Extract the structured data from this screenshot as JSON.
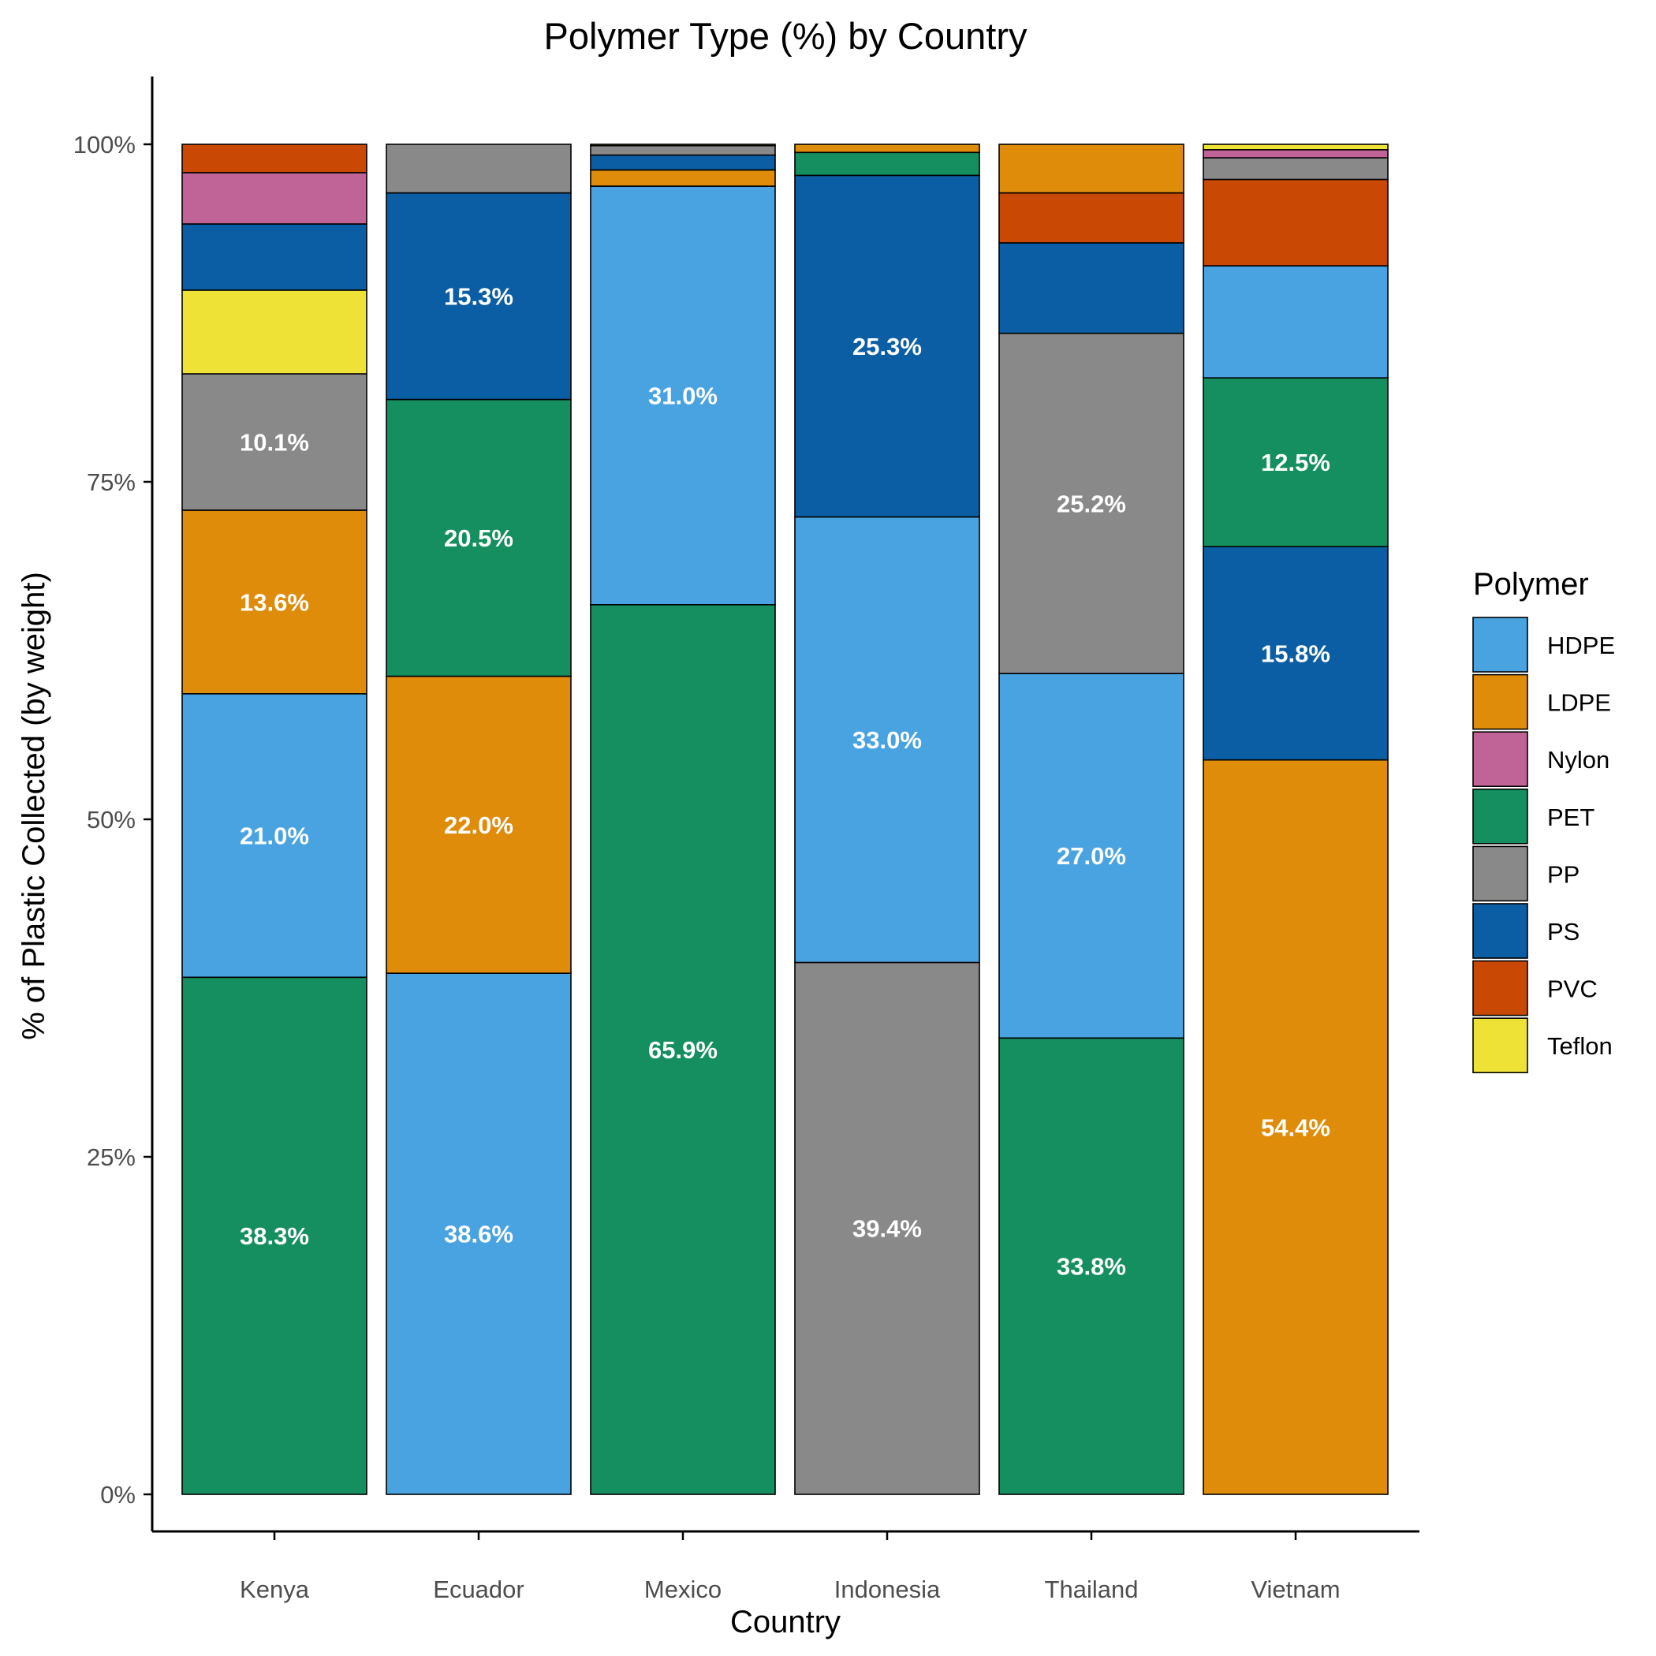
{
  "chart_data": {
    "type": "bar",
    "stacked": true,
    "title": "Polymer Type (%) by Country",
    "xlabel": "Country",
    "ylabel": "% of Plastic Collected (by weight)",
    "ylim": [
      0,
      100
    ],
    "yticks": [
      "0%",
      "25%",
      "50%",
      "75%",
      "100%"
    ],
    "categories": [
      "Kenya",
      "Ecuador",
      "Mexico",
      "Indonesia",
      "Thailand",
      "Vietnam"
    ],
    "legend": {
      "title": "Polymer",
      "placement": "right"
    },
    "series": [
      {
        "name": "HDPE",
        "color": "#4aa3e1",
        "values": [
          21.0,
          38.6,
          31.0,
          33.0,
          27.0,
          8.3
        ]
      },
      {
        "name": "LDPE",
        "color": "#de8c0a",
        "values": [
          13.6,
          22.0,
          1.2,
          0.6,
          3.6,
          54.4
        ]
      },
      {
        "name": "Nylon",
        "color": "#c06498",
        "values": [
          3.8,
          0.0,
          0.0,
          0.0,
          0.0,
          0.6
        ]
      },
      {
        "name": "PET",
        "color": "#158f5f",
        "values": [
          38.3,
          20.5,
          65.9,
          1.7,
          33.8,
          12.5
        ]
      },
      {
        "name": "PP",
        "color": "#898989",
        "values": [
          10.1,
          3.6,
          0.7,
          39.4,
          25.2,
          1.6
        ]
      },
      {
        "name": "PS",
        "color": "#0b5ea3",
        "values": [
          4.9,
          15.3,
          1.1,
          25.3,
          6.7,
          15.8
        ]
      },
      {
        "name": "PVC",
        "color": "#c94804",
        "values": [
          2.1,
          0.0,
          0.0,
          0.0,
          3.7,
          6.4
        ]
      },
      {
        "name": "Teflon",
        "color": "#eee236",
        "values": [
          6.2,
          0.0,
          0.1,
          0.0,
          0.0,
          0.4
        ]
      }
    ],
    "stack_order_bottom_to_top": [
      [
        "PET",
        "HDPE",
        "LDPE",
        "PP",
        "Teflon",
        "PS",
        "Nylon",
        "PVC"
      ],
      [
        "HDPE",
        "LDPE",
        "PET",
        "PS",
        "PP"
      ],
      [
        "PET",
        "HDPE",
        "LDPE",
        "PS",
        "PP",
        "Teflon"
      ],
      [
        "PP",
        "HDPE",
        "PS",
        "PET",
        "LDPE"
      ],
      [
        "PET",
        "HDPE",
        "PP",
        "PS",
        "PVC",
        "LDPE"
      ],
      [
        "LDPE",
        "PS",
        "PET",
        "HDPE",
        "PVC",
        "PP",
        "Nylon",
        "Teflon"
      ]
    ],
    "data_labels": [
      {
        "category": "Kenya",
        "series": "PET",
        "text": "38.3%"
      },
      {
        "category": "Kenya",
        "series": "HDPE",
        "text": "21.0%"
      },
      {
        "category": "Kenya",
        "series": "LDPE",
        "text": "13.6%"
      },
      {
        "category": "Kenya",
        "series": "PP",
        "text": "10.1%"
      },
      {
        "category": "Ecuador",
        "series": "HDPE",
        "text": "38.6%"
      },
      {
        "category": "Ecuador",
        "series": "LDPE",
        "text": "22.0%"
      },
      {
        "category": "Ecuador",
        "series": "PET",
        "text": "20.5%"
      },
      {
        "category": "Ecuador",
        "series": "PS",
        "text": "15.3%"
      },
      {
        "category": "Mexico",
        "series": "PET",
        "text": "65.9%"
      },
      {
        "category": "Mexico",
        "series": "HDPE",
        "text": "31.0%"
      },
      {
        "category": "Indonesia",
        "series": "PP",
        "text": "39.4%"
      },
      {
        "category": "Indonesia",
        "series": "HDPE",
        "text": "33.0%"
      },
      {
        "category": "Indonesia",
        "series": "PS",
        "text": "25.3%"
      },
      {
        "category": "Thailand",
        "series": "PET",
        "text": "33.8%"
      },
      {
        "category": "Thailand",
        "series": "HDPE",
        "text": "27.0%"
      },
      {
        "category": "Thailand",
        "series": "PP",
        "text": "25.2%"
      },
      {
        "category": "Vietnam",
        "series": "LDPE",
        "text": "54.4%"
      },
      {
        "category": "Vietnam",
        "series": "PS",
        "text": "15.8%"
      },
      {
        "category": "Vietnam",
        "series": "PET",
        "text": "12.5%"
      }
    ]
  }
}
